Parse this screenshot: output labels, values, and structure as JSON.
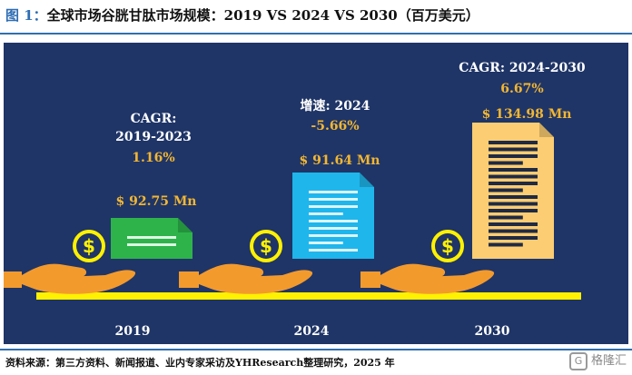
{
  "title": {
    "prefix": "图 1：",
    "text": "全球市场谷胱甘肽市场规模：2019 VS 2024 VS 2030（百万美元）"
  },
  "chart_data": {
    "type": "infographic",
    "title": "全球市场谷胱甘肽市场规模：2019 VS 2024 VS 2030（百万美元）",
    "unit": "百万美元",
    "categories": [
      "2019",
      "2024",
      "2030"
    ],
    "values": [
      92.75,
      91.64,
      134.98
    ],
    "value_labels": [
      "$ 92.75 Mn",
      "$ 91.64 Mn",
      "$ 134.98 Mn"
    ],
    "annotations": [
      {
        "heading": "CAGR:",
        "period": "2019-2023",
        "rate": "1.16%"
      },
      {
        "heading": "增速: 2024",
        "period": "",
        "rate": "-5.66%"
      },
      {
        "heading": "CAGR: 2024-2030",
        "period": "",
        "rate": "6.67%"
      }
    ],
    "doc_colors": [
      "#2db34a",
      "#1fb6ec",
      "#fccd72"
    ]
  },
  "colors": {
    "panel": "#1f3567",
    "gold": "#f2b632",
    "baseline": "#fff100",
    "coin": "#fff100",
    "hand": "#f39a2c"
  },
  "source": "资料来源：第三方资料、新闻报道、业内专家采访及YHResearch整理研究，2025 年",
  "watermark": {
    "badge": "G",
    "text": "格隆汇"
  }
}
